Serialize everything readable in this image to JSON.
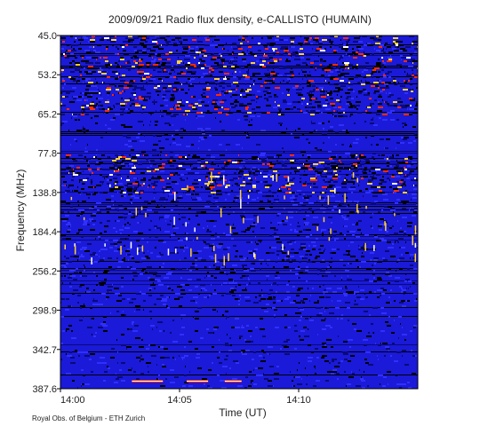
{
  "chart_data": {
    "type": "heatmap",
    "title": "2009/09/21  Radio flux density, e-CALLISTO (HUMAIN)",
    "xlabel": "Time (UT)",
    "ylabel": "Frequency (MHz)",
    "x_tick_labels": [
      "14:00",
      "14:05",
      "14:10"
    ],
    "x_tick_minutes": [
      0,
      5,
      10
    ],
    "x_range_minutes": [
      0,
      15
    ],
    "y_tick_labels": [
      "45.0",
      "53.2",
      "65.2",
      "77.8",
      "138.8",
      "184.4",
      "256.2",
      "298.9",
      "342.7",
      "387.6"
    ],
    "y_axis_direction": "frequency increases downward",
    "colormap": [
      "#000000",
      "#0a0a78",
      "#1c1ce8",
      "#3030ff",
      "#ff2a00",
      "#ffd030",
      "#ffffff"
    ],
    "background_color": "#1a1ad8",
    "features": [
      {
        "kind": "intense broadband emission",
        "freq_from_mhz": 45.0,
        "freq_to_mhz": 65.2,
        "time_from_min": 0,
        "time_to_min": 15
      },
      {
        "kind": "intense broadband emission",
        "freq_from_mhz": 77.8,
        "freq_to_mhz": 138.8,
        "time_from_min": 0,
        "time_to_min": 15
      },
      {
        "kind": "narrowband red burst",
        "freq_mhz": 387.6,
        "time_from_min": 3.0,
        "time_to_min": 4.3
      },
      {
        "kind": "narrowband red burst",
        "freq_mhz": 387.6,
        "time_from_min": 5.3,
        "time_to_min": 6.2
      },
      {
        "kind": "narrowband red burst",
        "freq_mhz": 387.6,
        "time_from_min": 6.9,
        "time_to_min": 7.6
      }
    ]
  },
  "credit": "Royal Obs. of Belgium - ETH Zurich"
}
